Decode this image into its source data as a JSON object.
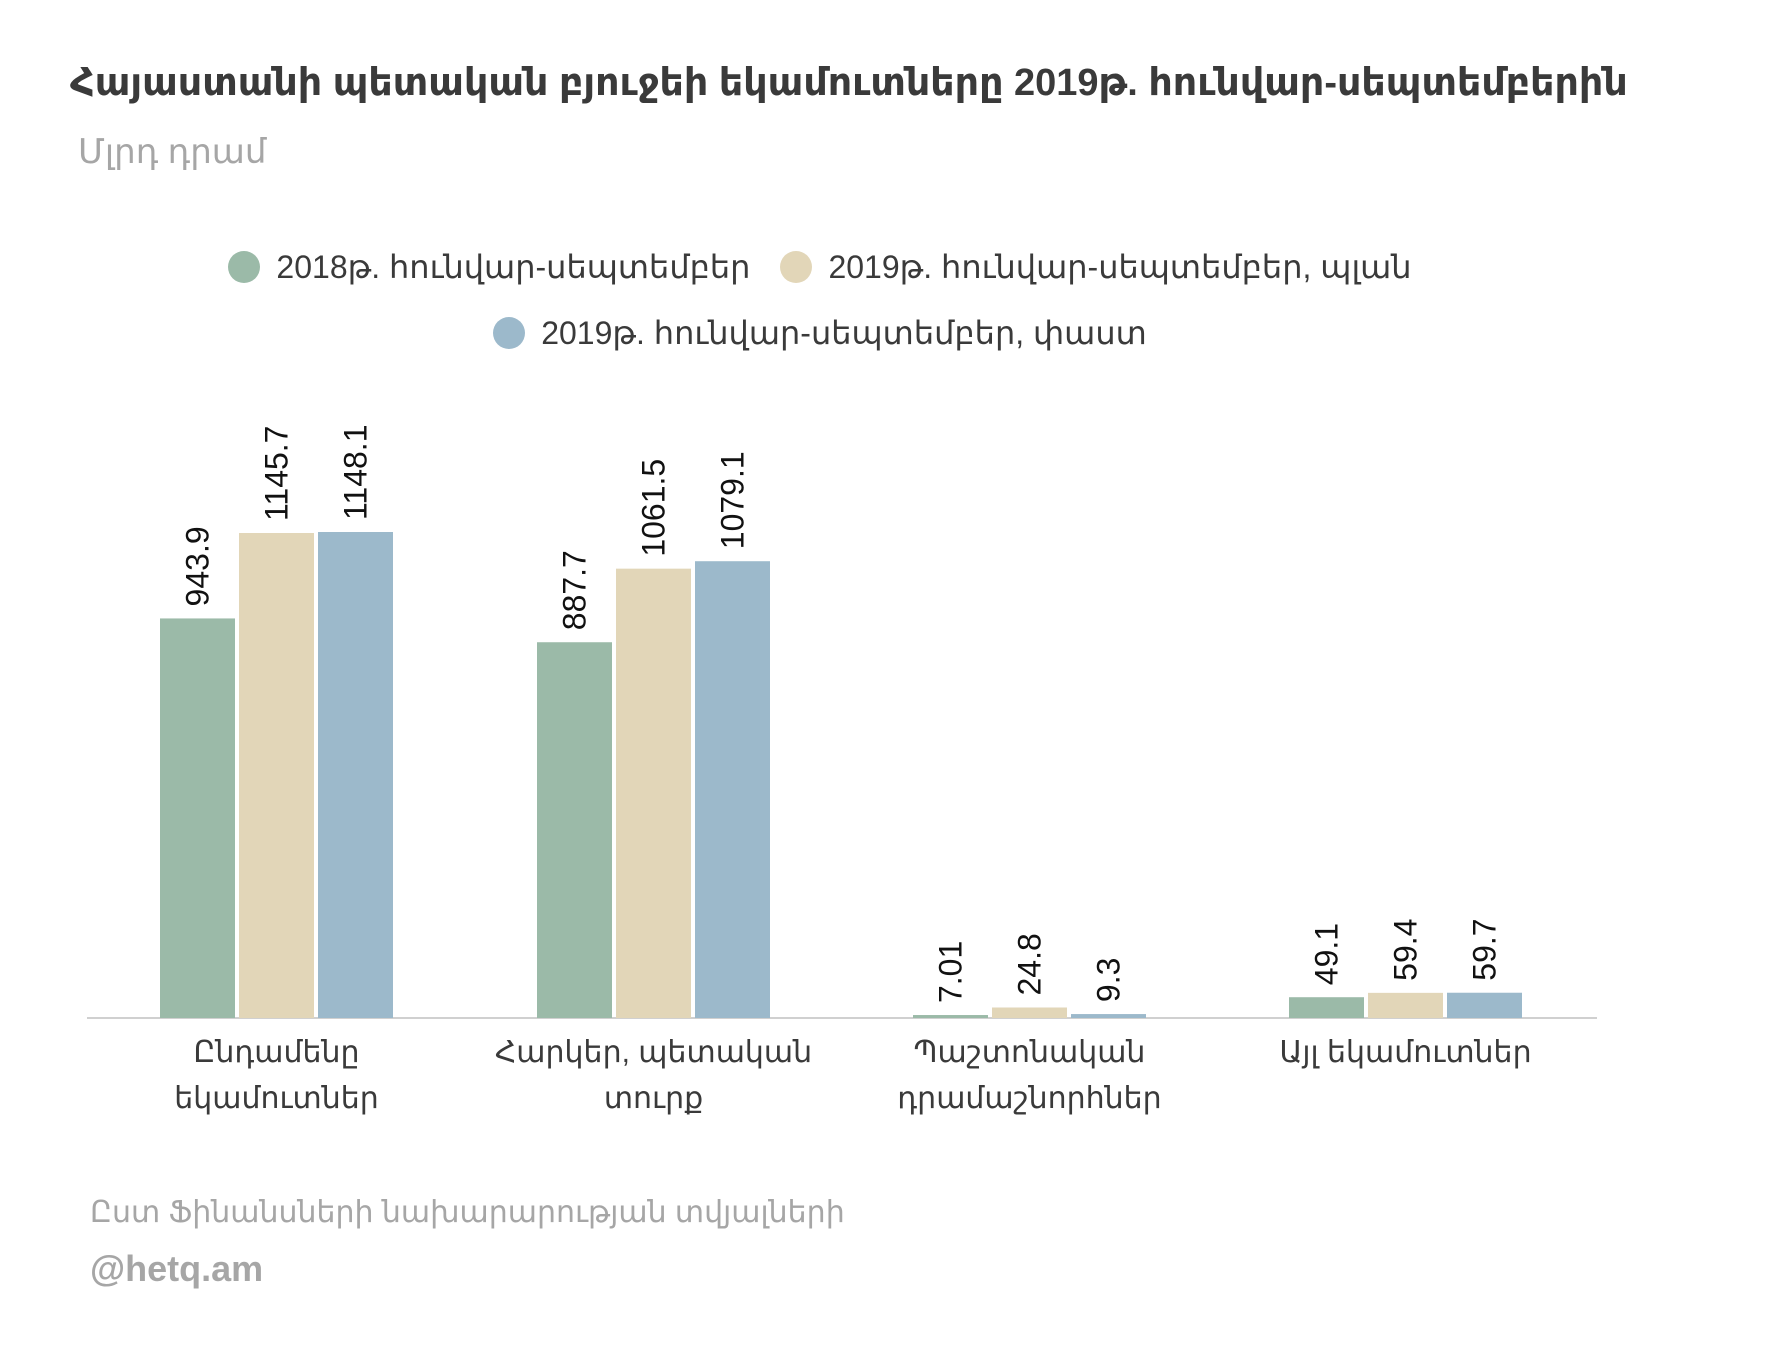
{
  "chart_data": {
    "type": "bar",
    "title": "Հայաստանի պետական բյուջեի եկամուտները  2019թ. հունվար-սեպտեմբերին",
    "subtitle": "Մլրդ դրամ",
    "categories": [
      [
        "Ընդամենը",
        "եկամուտներ"
      ],
      [
        "Հարկեր, պետական",
        "տուրք"
      ],
      [
        "Պաշտոնական",
        "դրամաշնորհներ"
      ],
      [
        "Այլ եկամուտներ"
      ]
    ],
    "series": [
      {
        "name": "2018թ. հունվար-սեպտեմբեր",
        "values": [
          943.9,
          887.7,
          7.01,
          49.1
        ],
        "labels": [
          "943.9",
          "887.7",
          "7.01",
          "49.1"
        ],
        "color": "#9bbaa8"
      },
      {
        "name": "2019թ. հունվար-սեպտեմբեր, պլան",
        "values": [
          1145.7,
          1061.5,
          24.8,
          59.4
        ],
        "labels": [
          "1145.7",
          "1061.5",
          "24.8",
          "59.4"
        ],
        "color": "#e2d6b8"
      },
      {
        "name": "2019թ. հունվար-սեպտեմբեր, փաստ",
        "values": [
          1148.1,
          1079.1,
          9.3,
          59.7
        ],
        "labels": [
          "1148.1",
          "1079.1",
          "9.3",
          "59.7"
        ],
        "color": "#9cb9cb"
      }
    ],
    "ylim": [
      0,
      1148.1
    ],
    "grid": false,
    "legend": "top-center",
    "xlabel": "",
    "ylabel": ""
  },
  "footer": {
    "source": "Ըստ Ֆինանսների նախարարության տվյալների",
    "handle": "@hetq.am"
  }
}
